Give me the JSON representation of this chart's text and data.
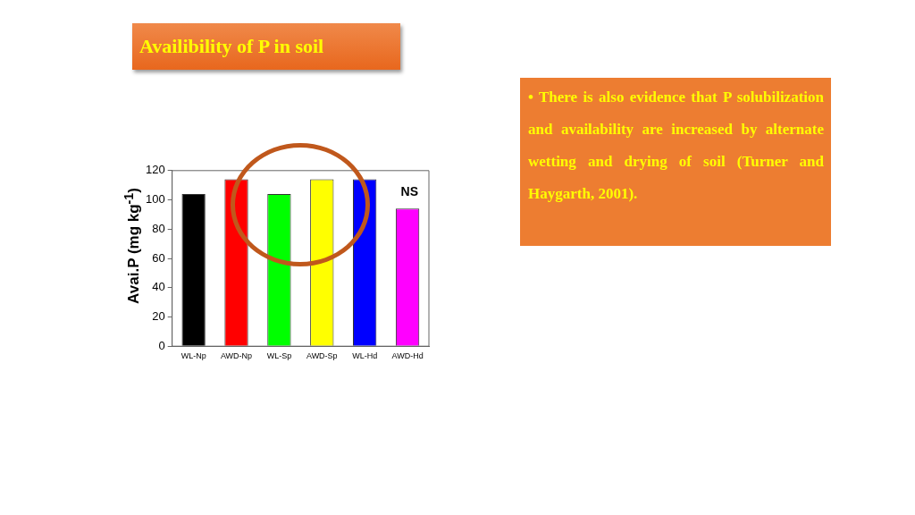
{
  "chart_data": {
    "type": "bar",
    "title": "Availibility of P in soil",
    "ylabel": "Avai.P (mg kg$^{-1}$)",
    "categories": [
      "WL-Np",
      "AWD-Np",
      "WL-Sp",
      "AWD-Sp",
      "WL-Hd",
      "AWD-Hd"
    ],
    "values": [
      104,
      114,
      104,
      114,
      114,
      94
    ],
    "colors": [
      "#000000",
      "#ff0000",
      "#00ff00",
      "#ffff00",
      "#0000ff",
      "#ff00ff"
    ],
    "ylim": [
      0,
      120
    ],
    "yticks": [
      0,
      20,
      40,
      60,
      80,
      100,
      120
    ],
    "grid": false,
    "legend": false,
    "annotations": [
      "NS",
      "• There is also evidence that P solubilization and availability are increased by alternate wetting and drying of soil (Turner and Haygarth, 2001)."
    ]
  }
}
